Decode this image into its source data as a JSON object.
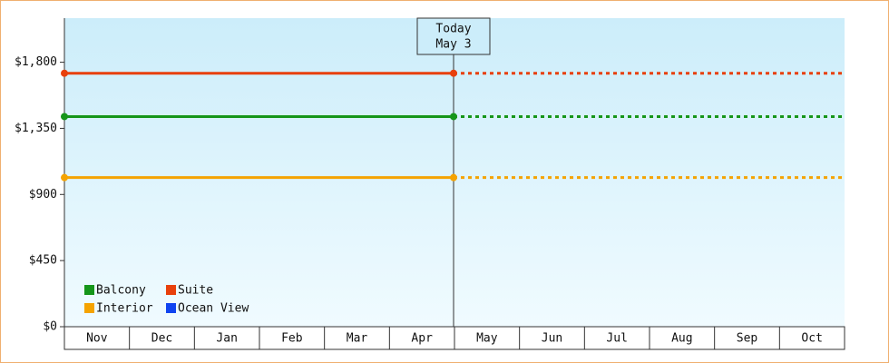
{
  "chart_data": {
    "type": "line",
    "categories": [
      "Nov",
      "Dec",
      "Jan",
      "Feb",
      "Mar",
      "Apr",
      "May",
      "Jun",
      "Jul",
      "Aug",
      "Sep",
      "Oct"
    ],
    "series": [
      {
        "name": "Balcony",
        "color": "#16961a",
        "value": 1430
      },
      {
        "name": "Suite",
        "color": "#e8400c",
        "value": 1725
      },
      {
        "name": "Interior",
        "color": "#f5a300",
        "value": 1015
      },
      {
        "name": "Ocean View",
        "color": "#1044f0",
        "value": null
      }
    ],
    "today": [
      "Today",
      "May 3"
    ],
    "ylim": [
      0,
      2100
    ],
    "yticks": [
      {
        "value": 0,
        "label": "$0"
      },
      {
        "value": 450,
        "label": "$450"
      },
      {
        "value": 900,
        "label": "$900"
      },
      {
        "value": 1350,
        "label": "$1,350"
      },
      {
        "value": 1800,
        "label": "$1,800"
      }
    ],
    "grid": false
  }
}
